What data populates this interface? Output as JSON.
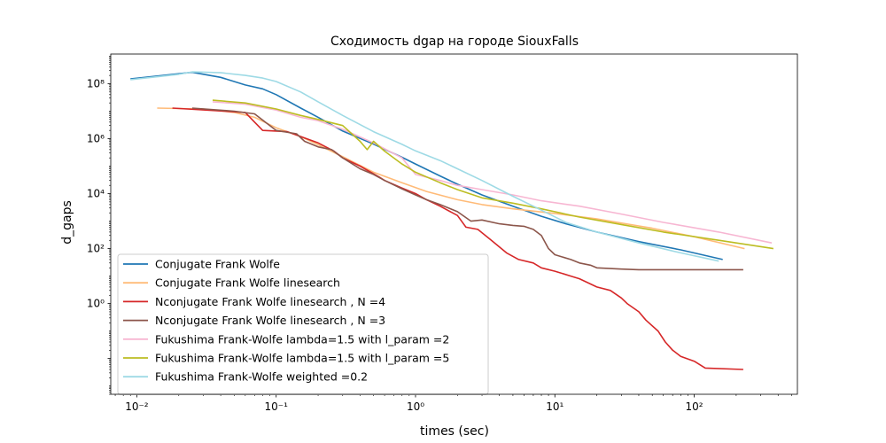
{
  "chart_data": {
    "type": "line",
    "title": "Сходимость dgap на городе SiouxFalls",
    "xlabel": "times (sec)",
    "ylabel": "d_gaps",
    "xscale": "log",
    "yscale": "log",
    "xlim": [
      0.0065,
      550
    ],
    "ylim": [
      0.0005,
      1200000000
    ],
    "x_ticks": [
      {
        "value": 0.01,
        "label": "10⁻²"
      },
      {
        "value": 0.1,
        "label": "10⁻¹"
      },
      {
        "value": 1,
        "label": "10⁰"
      },
      {
        "value": 10,
        "label": "10¹"
      },
      {
        "value": 100,
        "label": "10²"
      }
    ],
    "y_ticks": [
      {
        "value": 1,
        "label": "10⁰"
      },
      {
        "value": 100,
        "label": "10²"
      },
      {
        "value": 10000,
        "label": "10⁴"
      },
      {
        "value": 1000000,
        "label": "10⁶"
      },
      {
        "value": 100000000,
        "label": "10⁸"
      }
    ],
    "grid": false,
    "legend_position": "lower-left",
    "series": [
      {
        "name": "Conjugate Frank Wolfe",
        "color": "#1f77b4",
        "x": [
          0.009,
          0.025,
          0.04,
          0.06,
          0.08,
          0.1,
          0.15,
          0.2,
          0.3,
          0.5,
          0.8,
          1.0,
          1.5,
          2,
          3,
          5,
          8,
          12,
          20,
          40,
          80,
          160
        ],
        "y": [
          150000000,
          260000000,
          170000000,
          90000000,
          65000000,
          40000000,
          13000000,
          6000000,
          1900000,
          630000,
          210000,
          120000,
          44000,
          22000,
          9000,
          3500,
          1500,
          800,
          400,
          180,
          90,
          40
        ]
      },
      {
        "name": "Conjugate Frank Wolfe linesearch",
        "color": "#ffbb78",
        "x": [
          0.014,
          0.02,
          0.03,
          0.05,
          0.07,
          0.1,
          0.15,
          0.2,
          0.3,
          0.5,
          0.8,
          1.2,
          2,
          3,
          5,
          10,
          20,
          50,
          100,
          230
        ],
        "y": [
          13000000,
          12500000,
          12000000,
          9000000,
          6000000,
          2500000,
          1200000,
          600000,
          220000,
          60000,
          25000,
          12000,
          6000,
          4000,
          2800,
          1900,
          1200,
          550,
          270,
          100
        ]
      },
      {
        "name": "Nconjugate Frank Wolfe linesearch , N =4",
        "color": "#d62728",
        "x": [
          0.018,
          0.06,
          0.07,
          0.08,
          0.12,
          0.2,
          0.26,
          0.3,
          0.4,
          0.55,
          0.6,
          0.8,
          1.0,
          1.2,
          1.5,
          2.0,
          2.3,
          2.8,
          3.5,
          4.5,
          5.5,
          7.0,
          8.0,
          10.0,
          13.0,
          15.0,
          20.0,
          25.0,
          30.0,
          33.0,
          40.0,
          45.0,
          55.0,
          62.0,
          70.0,
          80.0,
          100.0,
          120.0,
          225.0
        ],
        "y": [
          13000000,
          9000000,
          4000000,
          2000000,
          1800000,
          700000,
          350000,
          200000,
          100000,
          40000,
          30000,
          16000,
          10000,
          6000,
          3500,
          1600,
          600,
          500,
          200,
          70,
          40,
          30,
          20,
          15,
          10,
          8,
          4,
          3,
          1.6,
          1.0,
          0.5,
          0.25,
          0.1,
          0.04,
          0.02,
          0.012,
          0.008,
          0.0045,
          0.004
        ]
      },
      {
        "name": "Nconjugate Frank Wolfe linesearch , N =3",
        "color": "#8c564b",
        "x": [
          0.025,
          0.05,
          0.07,
          0.1,
          0.14,
          0.16,
          0.2,
          0.25,
          0.3,
          0.4,
          0.5,
          0.6,
          0.8,
          1.0,
          1.2,
          1.5,
          2.0,
          2.5,
          3.0,
          4.0,
          5.0,
          6.0,
          7.0,
          8.0,
          9.0,
          10.0,
          13.0,
          15.0,
          18.0,
          20.0,
          30.0,
          40.0,
          60.0,
          100.0,
          225.0
        ],
        "y": [
          13000000,
          10000000,
          8000000,
          2000000,
          1500000,
          800000,
          500000,
          400000,
          200000,
          80000,
          50000,
          30000,
          15000,
          9000,
          6000,
          4000,
          2200,
          1000,
          1100,
          800,
          700,
          650,
          500,
          300,
          100,
          60,
          40,
          30,
          25,
          20,
          18,
          17,
          17,
          17,
          17
        ]
      },
      {
        "name": "Fukushima Frank-Wolfe lambda=1.5 with l_param =2",
        "color": "#f7b6d2",
        "x": [
          0.035,
          0.06,
          0.1,
          0.15,
          0.2,
          0.3,
          0.5,
          0.8,
          1.0,
          1.5,
          2.0,
          3.0,
          5.0,
          8.0,
          15.0,
          30.0,
          60.0,
          150.0,
          360.0
        ],
        "y": [
          22000000,
          18000000,
          11000000,
          6000000,
          4500000,
          2200000,
          700000,
          200000,
          50000,
          30000,
          20000,
          14000,
          9000,
          5500,
          3500,
          1800,
          900,
          400,
          160
        ]
      },
      {
        "name": "Fukushima Frank-Wolfe lambda=1.5 with l_param =5",
        "color": "#bcbd22",
        "x": [
          0.035,
          0.06,
          0.1,
          0.15,
          0.2,
          0.3,
          0.4,
          0.45,
          0.5,
          0.6,
          0.8,
          1.0,
          1.5,
          2.0,
          3.0,
          5.0,
          8.0,
          15.0,
          30.0,
          60.0,
          150.0,
          370.0
        ],
        "y": [
          25000000,
          20000000,
          12000000,
          7000000,
          5000000,
          3000000,
          800000,
          400000,
          800000,
          350000,
          120000,
          60000,
          25000,
          14000,
          7000,
          4500,
          2800,
          1400,
          750,
          400,
          200,
          100
        ]
      },
      {
        "name": "Fukushima Frank-Wolfe weighted =0.2",
        "color": "#9edae5",
        "x": [
          0.009,
          0.02,
          0.025,
          0.04,
          0.06,
          0.08,
          0.1,
          0.15,
          0.2,
          0.3,
          0.5,
          0.8,
          1.0,
          1.5,
          2.0,
          3.0,
          5.0,
          8.0,
          12.0,
          20.0,
          40.0,
          80.0,
          150.0
        ],
        "y": [
          140000000,
          220000000,
          270000000,
          250000000,
          200000000,
          160000000,
          120000000,
          50000000,
          22000000,
          7000000,
          1800000,
          620000,
          360000,
          160000,
          80000,
          30000,
          8000,
          2500,
          900,
          400,
          160,
          70,
          35
        ]
      }
    ]
  }
}
